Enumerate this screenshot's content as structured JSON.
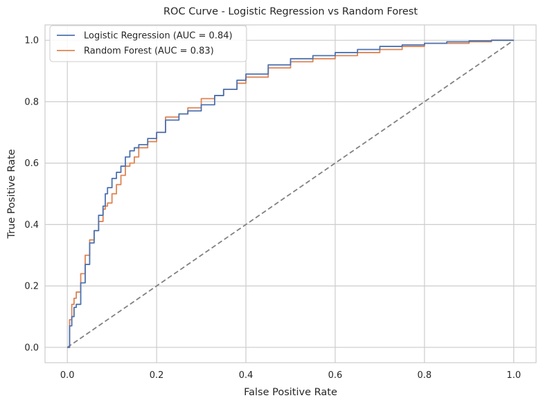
{
  "chart_data": {
    "type": "line",
    "title": "ROC Curve - Logistic Regression vs Random Forest",
    "xlabel": "False Positive Rate",
    "ylabel": "True Positive Rate",
    "xlim": [
      -0.05,
      1.05
    ],
    "ylim": [
      -0.05,
      1.05
    ],
    "xticks": [
      0.0,
      0.2,
      0.4,
      0.6,
      0.8,
      1.0
    ],
    "yticks": [
      0.0,
      0.2,
      0.4,
      0.6,
      0.8,
      1.0
    ],
    "tick_labels": [
      "0.0",
      "0.2",
      "0.4",
      "0.6",
      "0.8",
      "1.0"
    ],
    "grid": true,
    "legend_position": "top-left",
    "series": [
      {
        "name": "Logistic Regression (AUC = 0.84)",
        "color": "#4c72b0",
        "x": [
          0.0,
          0.005,
          0.01,
          0.015,
          0.02,
          0.03,
          0.04,
          0.05,
          0.06,
          0.07,
          0.08,
          0.085,
          0.09,
          0.1,
          0.11,
          0.12,
          0.13,
          0.14,
          0.15,
          0.16,
          0.18,
          0.2,
          0.22,
          0.25,
          0.27,
          0.3,
          0.33,
          0.35,
          0.38,
          0.4,
          0.45,
          0.5,
          0.55,
          0.6,
          0.65,
          0.7,
          0.75,
          0.8,
          0.85,
          0.9,
          0.95,
          1.0
        ],
        "y": [
          0.0,
          0.07,
          0.1,
          0.13,
          0.14,
          0.21,
          0.27,
          0.34,
          0.38,
          0.43,
          0.46,
          0.5,
          0.52,
          0.55,
          0.57,
          0.59,
          0.62,
          0.64,
          0.65,
          0.66,
          0.68,
          0.7,
          0.74,
          0.76,
          0.77,
          0.79,
          0.82,
          0.84,
          0.87,
          0.89,
          0.92,
          0.94,
          0.95,
          0.96,
          0.97,
          0.98,
          0.985,
          0.99,
          0.995,
          0.998,
          1.0,
          1.0
        ]
      },
      {
        "name": "Random Forest (AUC = 0.83)",
        "color": "#dd8452",
        "x": [
          0.0,
          0.005,
          0.01,
          0.015,
          0.02,
          0.03,
          0.04,
          0.05,
          0.06,
          0.07,
          0.08,
          0.085,
          0.09,
          0.1,
          0.11,
          0.12,
          0.13,
          0.14,
          0.15,
          0.16,
          0.18,
          0.2,
          0.22,
          0.25,
          0.27,
          0.3,
          0.33,
          0.35,
          0.38,
          0.4,
          0.45,
          0.5,
          0.55,
          0.6,
          0.65,
          0.7,
          0.75,
          0.8,
          0.85,
          0.9,
          0.95,
          1.0
        ],
        "y": [
          0.0,
          0.09,
          0.14,
          0.16,
          0.18,
          0.24,
          0.3,
          0.35,
          0.38,
          0.41,
          0.45,
          0.46,
          0.47,
          0.5,
          0.53,
          0.56,
          0.59,
          0.6,
          0.62,
          0.65,
          0.67,
          0.7,
          0.75,
          0.76,
          0.78,
          0.81,
          0.82,
          0.84,
          0.86,
          0.88,
          0.91,
          0.93,
          0.94,
          0.95,
          0.96,
          0.97,
          0.98,
          0.99,
          0.99,
          0.995,
          1.0,
          1.0
        ]
      },
      {
        "color": "#808080",
        "style": "dashed",
        "x": [
          0.0,
          1.0
        ],
        "y": [
          0.0,
          1.0
        ]
      }
    ]
  },
  "style": {
    "grid_color": "#cccccc",
    "axes_edge_color": "#cccccc"
  }
}
